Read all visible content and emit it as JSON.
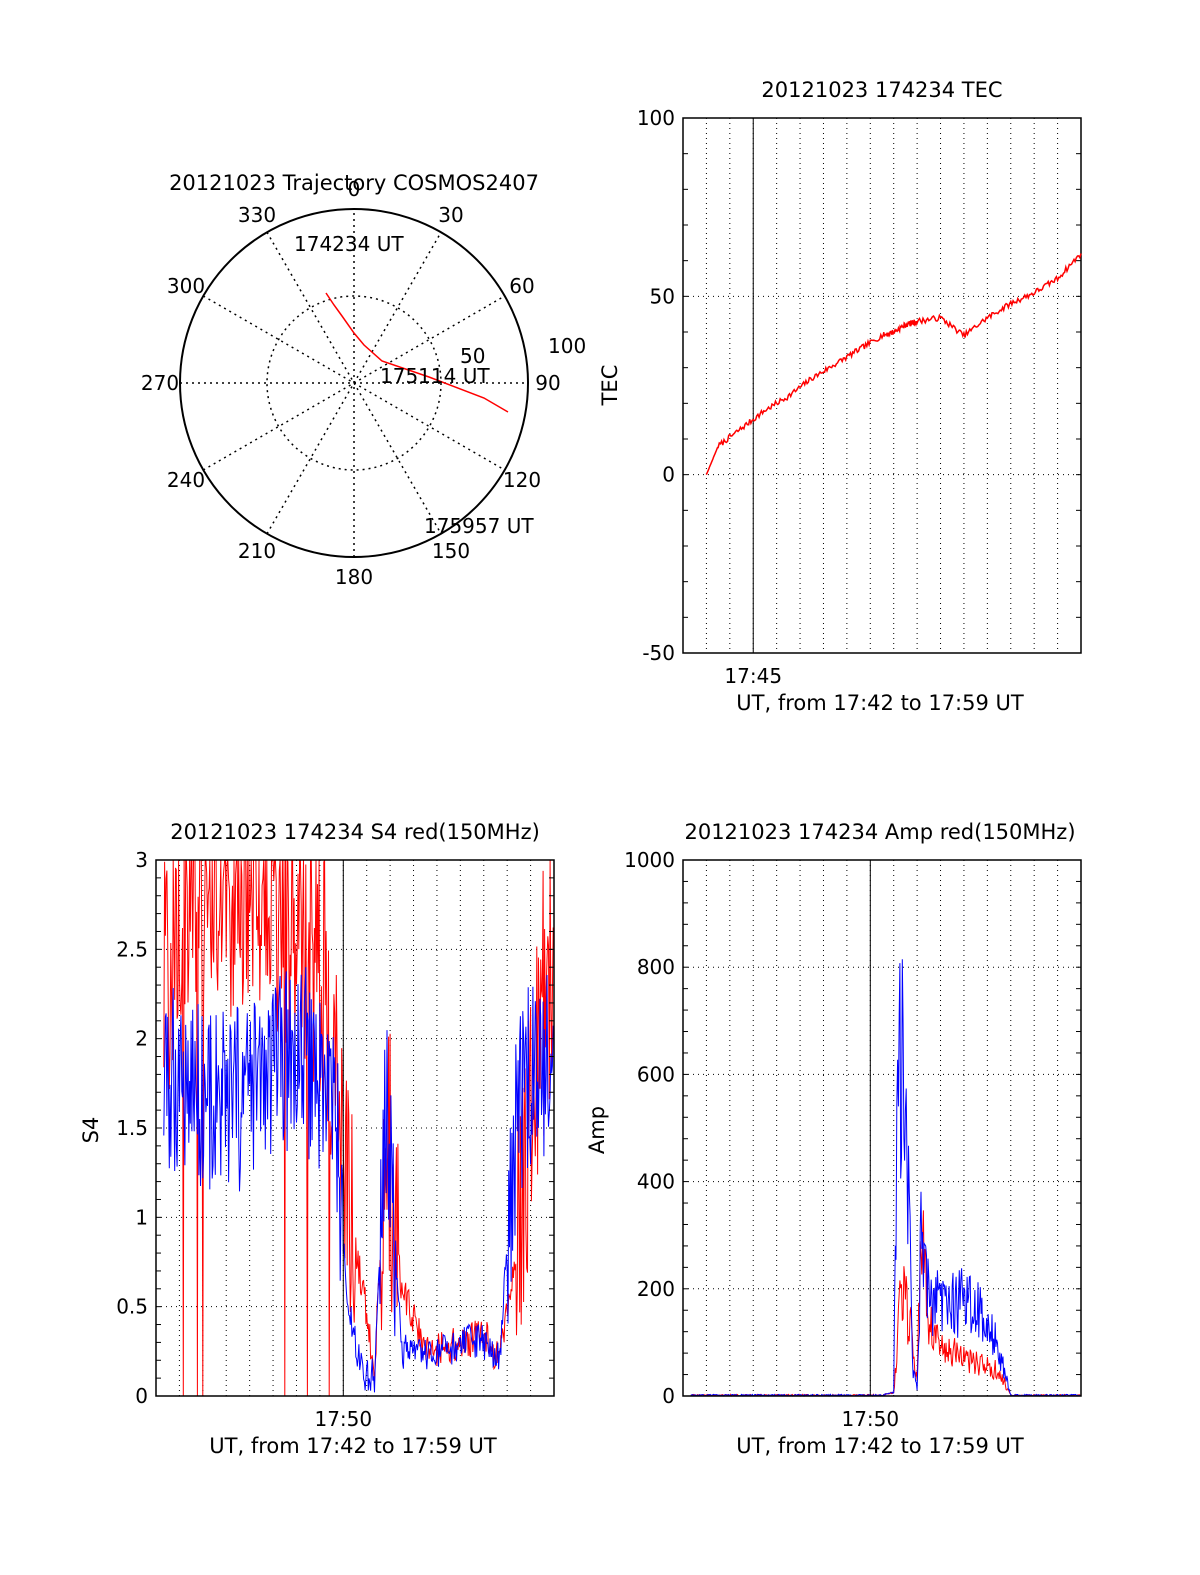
{
  "chart_data": [
    {
      "type": "polar",
      "title": "20121023 Trajectory COSMOS2407",
      "azimuth_labels": [
        "0",
        "30",
        "60",
        "90",
        "120",
        "150",
        "180",
        "210",
        "240",
        "270",
        "300",
        "330"
      ],
      "elevation_labels": [
        "50",
        "100"
      ],
      "series": [
        {
          "color": "#ff0000",
          "points": [
            [
              -28,
              90
            ],
            [
              -20,
              78
            ],
            [
              -12,
              67
            ],
            [
              0,
              50
            ],
            [
              10,
              38
            ],
            [
              28,
              22
            ],
            [
              75,
              6
            ],
            [
              130,
              -15
            ],
            [
              154,
              -29
            ]
          ]
        }
      ],
      "annotations": [
        "174234 UT",
        "175114 UT",
        "175957 UT"
      ]
    },
    {
      "type": "line",
      "title": "20121023 174234 TEC",
      "xlabel": "UT, from 17:42 to 17:59 UT",
      "ylabel": "TEC",
      "x_tick_labels": [
        "17:45"
      ],
      "y_tick_labels": [
        "-50",
        "0",
        "50",
        "100"
      ],
      "xlim": [
        "17:42:00",
        "17:59:00"
      ],
      "ylim": [
        -50,
        100
      ],
      "series": [
        {
          "color": "#ff0000",
          "x": [
            "17:43:00",
            "17:43:30",
            "17:44:30",
            "17:45:30",
            "17:46:30",
            "17:47:30",
            "17:48:30",
            "17:49:30",
            "17:50:30",
            "17:51:00",
            "17:51:30",
            "17:52:00",
            "17:53:00",
            "17:54:00",
            "17:55:00",
            "17:56:00",
            "17:57:00",
            "17:58:00",
            "17:59:00"
          ],
          "y": [
            0,
            8,
            13,
            18,
            22,
            27,
            31,
            35,
            39,
            40,
            42,
            43,
            44,
            39,
            44,
            48,
            51,
            55,
            62
          ]
        }
      ]
    },
    {
      "type": "line",
      "title": "20121023 174234 S4 red(150MHz)",
      "xlabel": "UT, from 17:42 to 17:59 UT",
      "ylabel": "S4",
      "x_tick_labels": [
        "17:50"
      ],
      "y_tick_labels": [
        "0",
        "0.5",
        "1",
        "1.5",
        "2",
        "2.5",
        "3"
      ],
      "xlim": [
        "17:42:00",
        "17:59:00"
      ],
      "ylim": [
        0,
        3
      ],
      "series": [
        {
          "color": "#ff0000",
          "x": [
            "17:42:20",
            "17:43:00",
            "17:44:00",
            "17:45:00",
            "17:46:00",
            "17:47:00",
            "17:48:00",
            "17:49:00",
            "17:49:40",
            "17:50:10",
            "17:50:50",
            "17:51:20",
            "17:51:50",
            "17:52:30",
            "17:53:30",
            "17:54:30",
            "17:55:20",
            "17:56:00",
            "17:56:40",
            "17:57:30",
            "17:58:30",
            "17:59:00"
          ],
          "y": [
            2.2,
            2.8,
            2.9,
            2.9,
            2.9,
            2.8,
            2.7,
            2.4,
            2.0,
            1.1,
            0.6,
            0.15,
            1.5,
            0.6,
            0.25,
            0.28,
            0.3,
            0.35,
            0.2,
            0.9,
            2.2,
            2.6
          ]
        },
        {
          "color": "#0000ff",
          "x": [
            "17:42:20",
            "17:43:00",
            "17:44:00",
            "17:45:00",
            "17:46:00",
            "17:47:00",
            "17:48:00",
            "17:49:00",
            "17:49:40",
            "17:50:10",
            "17:50:50",
            "17:51:20",
            "17:51:50",
            "17:52:30",
            "17:53:30",
            "17:54:30",
            "17:55:20",
            "17:56:00",
            "17:56:40",
            "17:57:30",
            "17:58:30",
            "17:59:00"
          ],
          "y": [
            1.7,
            1.8,
            1.7,
            1.6,
            1.7,
            1.8,
            1.9,
            1.8,
            1.6,
            0.5,
            0.12,
            0.12,
            1.6,
            0.25,
            0.22,
            0.25,
            0.3,
            0.3,
            0.2,
            1.7,
            1.8,
            1.9
          ]
        }
      ]
    },
    {
      "type": "line",
      "title": "20121023 174234 Amp red(150MHz)",
      "xlabel": "UT, from 17:42 to 17:59 UT",
      "ylabel": "Amp",
      "x_tick_labels": [
        "17:50"
      ],
      "y_tick_labels": [
        "0",
        "200",
        "400",
        "600",
        "800",
        "1000"
      ],
      "xlim": [
        "17:42:00",
        "17:59:00"
      ],
      "ylim": [
        0,
        1000
      ],
      "series": [
        {
          "color": "#ff0000",
          "x": [
            "17:42:20",
            "17:50:30",
            "17:51:00",
            "17:51:20",
            "17:51:40",
            "17:52:00",
            "17:52:10",
            "17:52:30",
            "17:53:00",
            "17:54:00",
            "17:55:00",
            "17:55:30",
            "17:56:00",
            "17:59:00"
          ],
          "y": [
            0,
            0,
            5,
            170,
            120,
            30,
            300,
            120,
            80,
            60,
            45,
            40,
            0,
            0
          ]
        },
        {
          "color": "#0000ff",
          "x": [
            "17:42:20",
            "17:50:30",
            "17:51:00",
            "17:51:10",
            "17:51:30",
            "17:51:50",
            "17:52:00",
            "17:52:10",
            "17:52:30",
            "17:53:00",
            "17:54:00",
            "17:55:00",
            "17:55:30",
            "17:56:00",
            "17:59:00"
          ],
          "y": [
            0,
            0,
            5,
            560,
            480,
            40,
            10,
            240,
            160,
            140,
            150,
            120,
            70,
            0,
            0
          ]
        }
      ]
    }
  ]
}
